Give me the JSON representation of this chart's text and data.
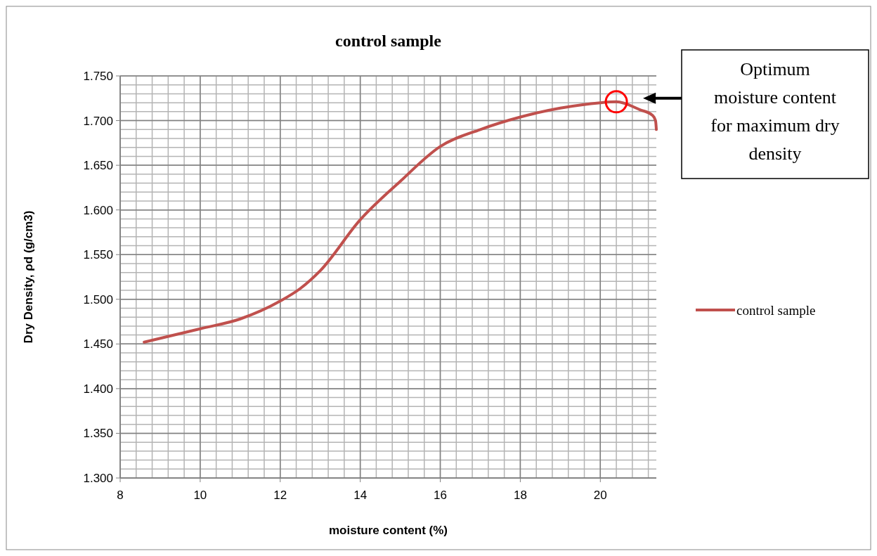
{
  "chart_data": {
    "type": "line",
    "title": "control sample",
    "xlabel": "moisture content (%)",
    "ylabel": "Dry Density, ρd (g/cm3)",
    "xlim": [
      8,
      21.4
    ],
    "xticks": [
      8,
      10,
      12,
      14,
      16,
      18,
      20
    ],
    "ylim": [
      1.3,
      1.75
    ],
    "yticks": [
      {
        "value": 1.3,
        "label": "1.300"
      },
      {
        "value": 1.35,
        "label": "1.350"
      },
      {
        "value": 1.4,
        "label": "1.400"
      },
      {
        "value": 1.45,
        "label": "1.450"
      },
      {
        "value": 1.5,
        "label": "1.500"
      },
      {
        "value": 1.55,
        "label": "1.550"
      },
      {
        "value": 1.6,
        "label": "1.600"
      },
      {
        "value": 1.65,
        "label": "1.650"
      },
      {
        "value": 1.7,
        "label": "1.700"
      },
      {
        "value": 1.75,
        "label": "1.750"
      }
    ],
    "grid": true,
    "legend": "right",
    "marker": "none",
    "line_style": "solid",
    "series": [
      {
        "name": "control sample",
        "color": "#c0504d",
        "x": [
          8.6,
          10,
          11,
          12,
          12.5,
          13,
          14,
          15,
          16,
          17,
          18,
          19,
          20,
          20.4,
          21,
          21.3,
          21.38,
          21.4
        ],
        "values": [
          1.452,
          1.467,
          1.478,
          1.498,
          1.512,
          1.532,
          1.589,
          1.632,
          1.671,
          1.69,
          1.704,
          1.714,
          1.72,
          1.721,
          1.712,
          1.706,
          1.7,
          1.69
        ]
      }
    ],
    "annotations": [
      "Optimum moisture content for maximum dry density"
    ]
  }
}
